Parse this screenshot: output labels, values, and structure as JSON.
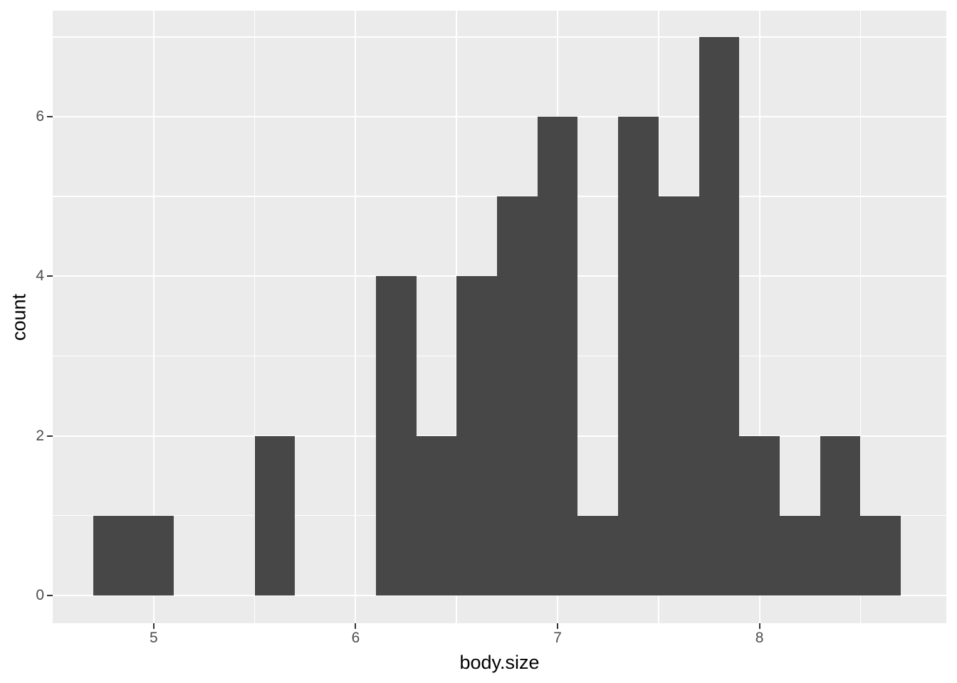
{
  "figure": {
    "background": "#FFFFFF"
  },
  "chart_data": {
    "type": "bar",
    "subtype": "histogram",
    "title": "",
    "xlabel": "body.size",
    "ylabel": "count",
    "bin_start": 4.7,
    "binwidth": 0.2,
    "bin_edges": [
      4.7,
      4.9,
      5.1,
      5.3,
      5.5,
      5.7,
      5.9,
      6.1,
      6.3,
      6.5,
      6.7,
      6.9,
      7.1,
      7.3,
      7.5,
      7.7,
      7.9,
      8.1,
      8.3,
      8.5,
      8.7
    ],
    "counts": [
      1,
      1,
      0,
      0,
      2,
      0,
      0,
      4,
      2,
      4,
      5,
      6,
      1,
      6,
      5,
      7,
      2,
      1,
      2,
      1
    ],
    "x_ticks": [
      5,
      6,
      7,
      8
    ],
    "x_minor_ticks": [
      5.5,
      6.5,
      7.5,
      8.5
    ],
    "y_ticks": [
      0,
      2,
      4,
      6
    ],
    "y_minor_ticks": [
      1,
      3,
      5,
      7
    ],
    "xlim": [
      4.5,
      8.925
    ],
    "ylim": [
      -0.35,
      7.33
    ],
    "grid": true,
    "legend_position": "none",
    "colors": {
      "bar_fill": "#474747",
      "panel_background": "#EBEBEB",
      "grid_major": "#FFFFFF",
      "grid_minor": "#FFFFFF",
      "tick_mark": "#333333",
      "tick_label": "#4D4D4D",
      "axis_title": "#000000"
    }
  }
}
